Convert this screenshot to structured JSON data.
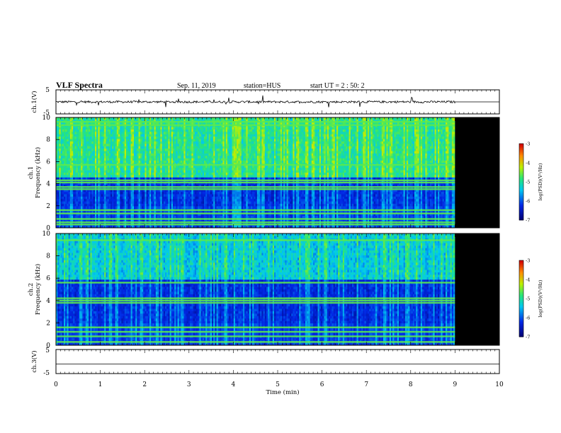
{
  "header": {
    "title": "VLF Spectra",
    "date": "Sep. 11, 2019",
    "station": "station=HUS",
    "start": "start UT =  2 : 50: 2"
  },
  "colors": {
    "background": "#ffffff",
    "axis": "#000000",
    "no_data": "#000000"
  },
  "chart_data": [
    {
      "type": "line",
      "panel": "ch1-waveform",
      "ylabel": "ch.1(V)",
      "ylim": [
        -5,
        5
      ],
      "yticks": [
        "5",
        "-5"
      ],
      "xlim": [
        0,
        10
      ],
      "description_values": {
        "baseline_v": 0,
        "data_end_min": 9.0,
        "flat_after_min": 9.0
      }
    },
    {
      "type": "heatmap",
      "panel": "ch1-spectrogram",
      "ylabel_line1": "ch.1",
      "ylabel_line2": "Frequency (kHz)",
      "ylim": [
        0,
        10
      ],
      "yticks": [
        "0",
        "2",
        "4",
        "6",
        "8",
        "10"
      ],
      "xlim": [
        0,
        10
      ],
      "data_end_min": 9.0,
      "colorbar": {
        "label": "log(PSD)(V²/Hz)",
        "range": [
          -7,
          -3
        ],
        "ticks": [
          "-3",
          "-4",
          "-5",
          "-6",
          "-7"
        ]
      },
      "bands_khz": [
        0.3,
        0.5,
        0.8,
        1.3,
        1.6,
        3.5,
        3.7,
        4.1,
        4.3,
        5.7,
        9.3,
        9.6
      ],
      "high_level_region_khz": [
        4.5,
        10
      ]
    },
    {
      "type": "heatmap",
      "panel": "ch2-spectrogram",
      "ylabel_line1": "ch.2",
      "ylabel_line2": "Frequency (kHz)",
      "ylim": [
        0,
        10
      ],
      "yticks": [
        "0",
        "2",
        "4",
        "6",
        "8",
        "10"
      ],
      "xlim": [
        0,
        10
      ],
      "data_end_min": 9.0,
      "colorbar": {
        "label": "log(PSD)(V²/Hz)",
        "range": [
          -7,
          -3
        ],
        "ticks": [
          "-3",
          "-4",
          "-5",
          "-6",
          "-7"
        ]
      },
      "bands_khz": [
        0.3,
        0.8,
        1.2,
        1.6,
        3.8,
        4.0,
        4.2,
        5.6,
        9.4
      ],
      "high_level_region_khz": [
        5.8,
        10
      ]
    },
    {
      "type": "line",
      "panel": "ch3-waveform",
      "ylabel": "ch.3(V)",
      "ylim": [
        -5,
        5
      ],
      "yticks": [
        "5",
        "-5"
      ],
      "xlim": [
        0,
        10
      ],
      "description_values": {
        "baseline_v": -1
      }
    }
  ],
  "xaxis": {
    "label": "Time (min)",
    "ticks": [
      "0",
      "1",
      "2",
      "3",
      "4",
      "5",
      "6",
      "7",
      "8",
      "9",
      "10"
    ],
    "range": [
      0,
      10
    ]
  }
}
